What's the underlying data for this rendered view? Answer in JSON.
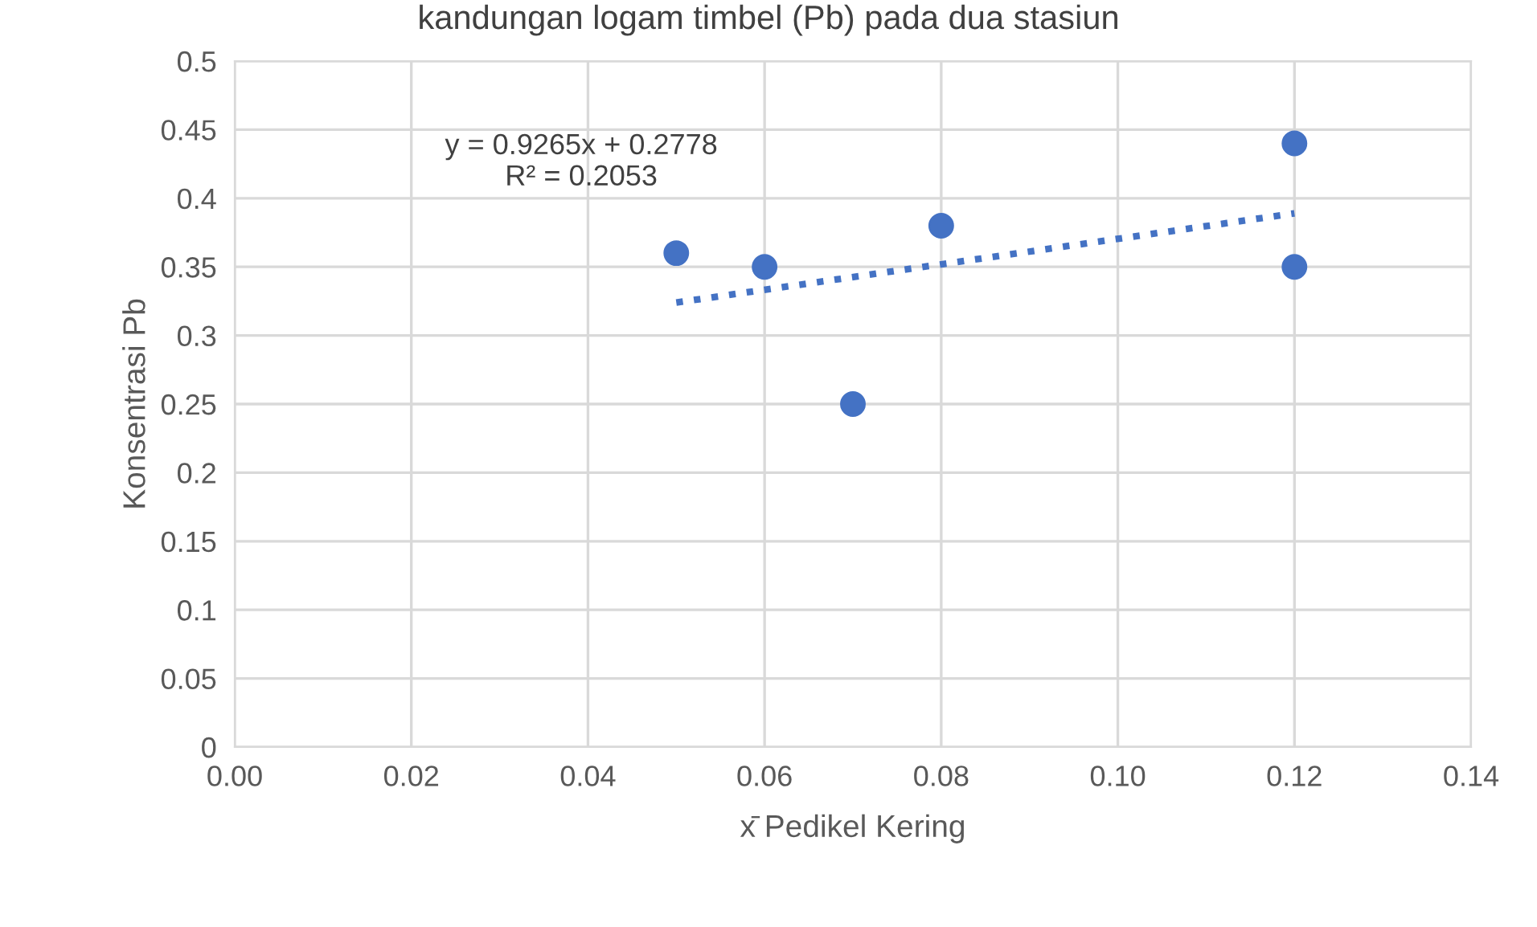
{
  "chart_data": {
    "type": "scatter",
    "title": "kandungan logam timbel (Pb) pada dua stasiun",
    "xlabel": "x̄ Pedikel Kering",
    "ylabel": "Konsentrasi Pb",
    "x": [
      0.05,
      0.06,
      0.07,
      0.08,
      0.12,
      0.12
    ],
    "series": [
      {
        "color": "#4472c4",
        "values": [
          0.36,
          0.35,
          0.25,
          0.38,
          0.44,
          0.35
        ]
      },
      {
        "type": "line",
        "color": "#4472c4",
        "x": [
          0.05,
          0.12
        ],
        "values": [
          0.324,
          0.389
        ],
        "line_style": "dotted",
        "marker": "none"
      }
    ],
    "annotations": [
      "y = 0.9265x + 0.2778\nR² = 0.2053"
    ],
    "xlim": [
      0,
      0.14
    ],
    "xticks": [
      {
        "value": 0,
        "label": "0.00"
      },
      {
        "value": 0.02,
        "label": "0.02"
      },
      {
        "value": 0.04,
        "label": "0.04"
      },
      {
        "value": 0.06,
        "label": "0.06"
      },
      {
        "value": 0.08,
        "label": "0.08"
      },
      {
        "value": 0.1,
        "label": "0.10"
      },
      {
        "value": 0.12,
        "label": "0.12"
      },
      {
        "value": 0.14,
        "label": "0.14"
      }
    ],
    "ylim": [
      0,
      0.5
    ],
    "yticks": [
      0,
      0.05,
      0.1,
      0.15,
      0.2,
      0.25,
      0.3,
      0.35,
      0.4,
      0.45,
      0.5
    ],
    "grid": true,
    "marker": "circle",
    "legend": false
  }
}
